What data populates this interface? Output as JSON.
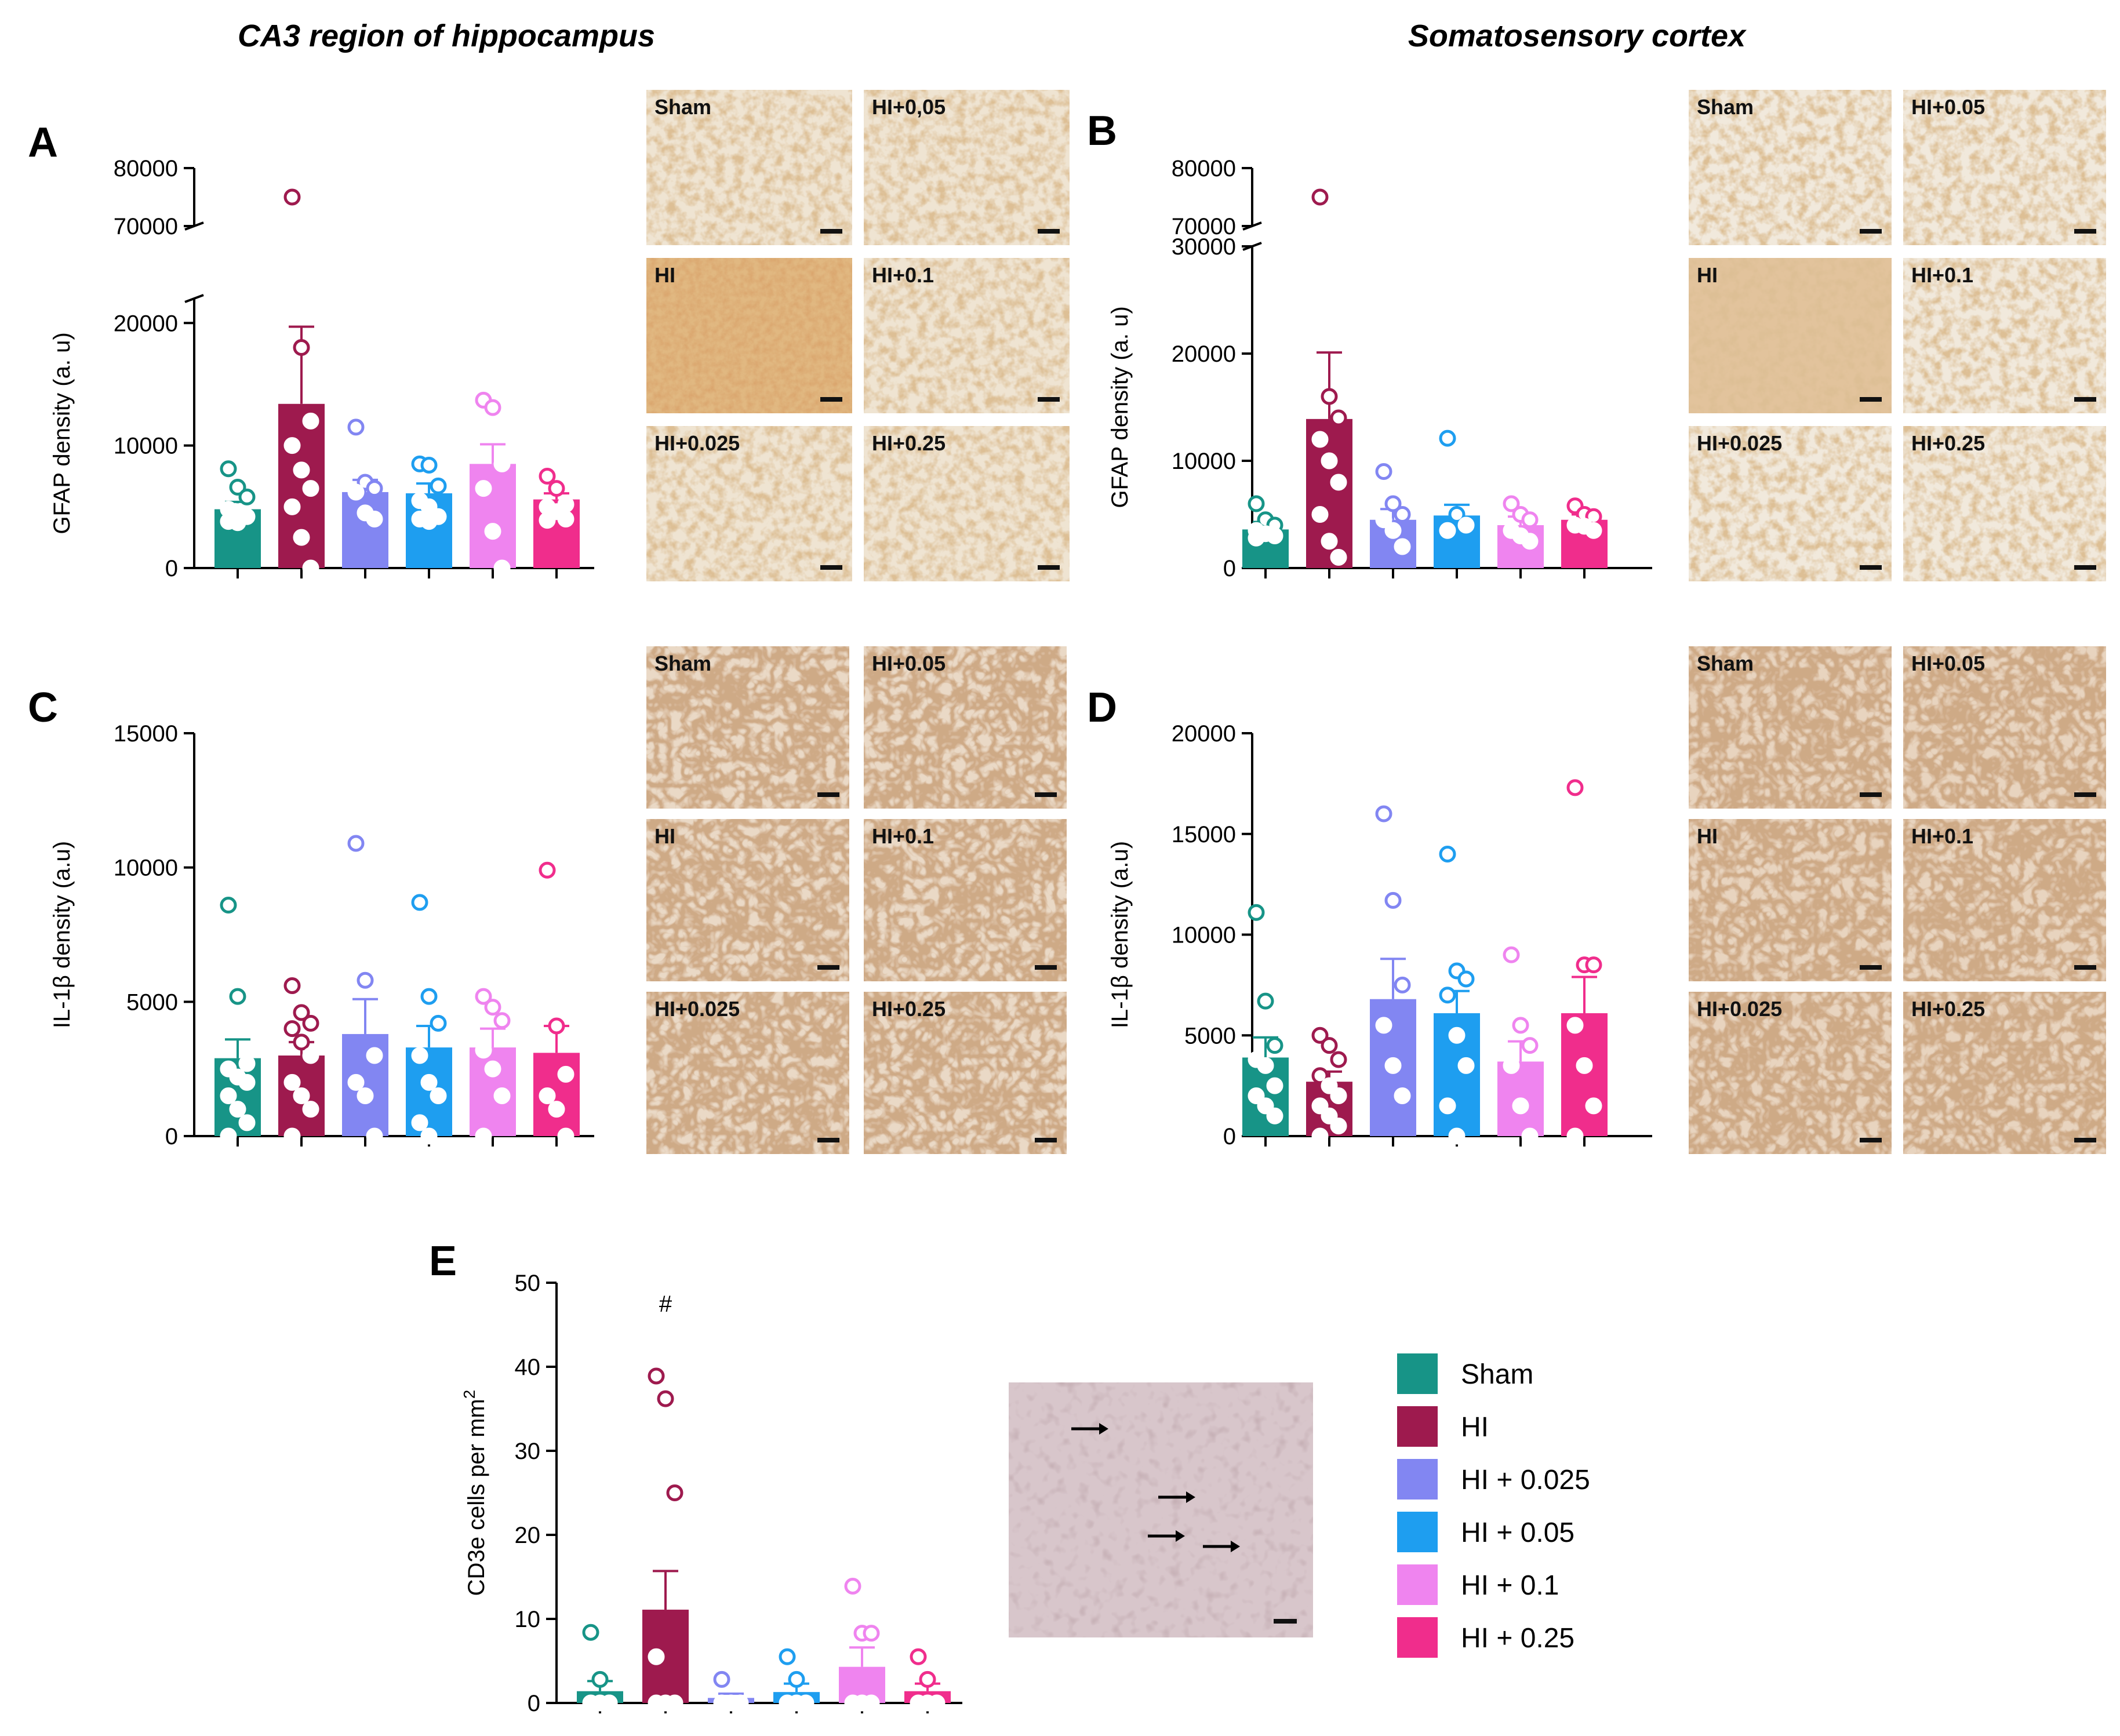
{
  "headers": {
    "left": "CA3 region of hippocampus",
    "right": "Somatosensory cortex"
  },
  "colors": {
    "Sham": "#179487",
    "HI": "#9e1a4e",
    "HI + 0.025": "#8286f2",
    "HI + 0.05": "#1e9ef0",
    "HI + 0.1": "#ef84ef",
    "HI + 0.25": "#f02d8c"
  },
  "legend": {
    "items": [
      "Sham",
      "HI",
      "HI + 0.025",
      "HI + 0.05",
      "HI + 0.1",
      "HI + 0.25"
    ]
  },
  "micrographs": {
    "A": {
      "labels": [
        "Sham",
        "HI+0,05",
        "HI",
        "HI+0.1",
        "HI+0.025",
        "HI+0.25"
      ],
      "stain": "GFAP"
    },
    "B": {
      "labels": [
        "Sham",
        "HI+0.05",
        "HI",
        "HI+0.1",
        "HI+0.025",
        "HI+0.25"
      ],
      "stain": "GFAP"
    },
    "C": {
      "labels": [
        "Sham",
        "HI+0.05",
        "HI",
        "HI+0.1",
        "HI+0.025",
        "HI+0.25"
      ],
      "stain": "IL-1β"
    },
    "D": {
      "labels": [
        "Sham",
        "HI+0.05",
        "HI",
        "HI+0.1",
        "HI+0.025",
        "HI+0.25"
      ],
      "stain": "IL-1β"
    },
    "E": {
      "stain": "CD3e",
      "arrows": 4
    }
  },
  "chart_data": [
    {
      "panel": "A",
      "type": "bar",
      "ylabel": "GFAP density (a. u)",
      "categories": [
        "Sham",
        "HI",
        "HI + 0.025",
        "HI + 0.05",
        "HI + 0.1",
        "HI + 0.25"
      ],
      "axis_break": {
        "lower": [
          0,
          22000
        ],
        "upper": [
          70000,
          80000
        ]
      },
      "yticks_lower": [
        0,
        10000,
        20000
      ],
      "yticks_upper": [
        70000,
        80000
      ],
      "values": [
        4800,
        13400,
        6200,
        6100,
        8500,
        5600
      ],
      "errors": [
        600,
        6300,
        1000,
        800,
        1600,
        500
      ],
      "points": [
        [
          8100,
          6600,
          5800,
          4800,
          4600,
          4200,
          3800,
          3700
        ],
        [
          75000,
          18000,
          12000,
          10000,
          8000,
          6500,
          5000,
          2500,
          0
        ],
        [
          11500,
          7000,
          6500,
          6200,
          4500,
          4000
        ],
        [
          8500,
          8400,
          6700,
          5500,
          5000,
          4200,
          4000,
          3800
        ],
        [
          13700,
          13100,
          8500,
          6500,
          3000,
          0
        ],
        [
          7500,
          6500,
          5200,
          5000,
          4600,
          4000,
          3900
        ]
      ]
    },
    {
      "panel": "B",
      "type": "bar",
      "ylabel": "GFAP density (a. u)",
      "categories": [
        "Sham",
        "HI",
        "HI + 0.025",
        "HI + 0.05",
        "HI + 0.1",
        "HI + 0.25"
      ],
      "axis_break": {
        "lower": [
          0,
          30000
        ],
        "upper": [
          70000,
          80000
        ]
      },
      "yticks_lower": [
        0,
        10000,
        20000,
        30000
      ],
      "yticks_upper": [
        70000,
        80000
      ],
      "values": [
        3600,
        13900,
        4500,
        4900,
        4000,
        4500
      ],
      "errors": [
        700,
        6200,
        1000,
        1000,
        800,
        500
      ],
      "points": [
        [
          6000,
          4500,
          4000,
          3500,
          3200,
          3000,
          2800
        ],
        [
          75000,
          16000,
          14000,
          12000,
          10000,
          8000,
          5000,
          2500,
          1000
        ],
        [
          9000,
          6000,
          5000,
          4500,
          3500,
          2000
        ],
        [
          12100,
          5000,
          4000,
          3500
        ],
        [
          6000,
          5000,
          4500,
          3500,
          3000,
          2500
        ],
        [
          5800,
          5000,
          4800,
          4000,
          3900,
          3500
        ]
      ]
    },
    {
      "panel": "C",
      "type": "bar",
      "ylabel": "IL-1β density (a.u)",
      "categories": [
        "Sham",
        "HI",
        "HI + 0.025",
        "HI + 0.05",
        "HI + 0.1",
        "HI + 0.25"
      ],
      "ylim": [
        0,
        15000
      ],
      "yticks": [
        0,
        5000,
        10000,
        15000
      ],
      "values": [
        2900,
        3000,
        3800,
        3300,
        3300,
        3100
      ],
      "errors": [
        700,
        500,
        1300,
        800,
        700,
        1000
      ],
      "points": [
        [
          8600,
          5200,
          2700,
          2500,
          2200,
          2000,
          1500,
          1000,
          500,
          0
        ],
        [
          5600,
          4600,
          4200,
          4000,
          3500,
          3000,
          2000,
          1500,
          1000,
          0
        ],
        [
          10900,
          5800,
          3000,
          2000,
          1500,
          0
        ],
        [
          8700,
          5200,
          4200,
          3000,
          2000,
          1500,
          500,
          0
        ],
        [
          5200,
          4800,
          4300,
          3200,
          2500,
          1500,
          0
        ],
        [
          9900,
          4100,
          2300,
          1500,
          1000,
          0
        ]
      ]
    },
    {
      "panel": "D",
      "type": "bar",
      "ylabel": "IL-1β density (a.u)",
      "categories": [
        "Sham",
        "HI",
        "HI + 0.025",
        "HI + 0.05",
        "HI + 0.1",
        "HI + 0.25"
      ],
      "ylim": [
        0,
        20000
      ],
      "yticks": [
        0,
        5000,
        10000,
        15000,
        20000
      ],
      "values": [
        3900,
        2700,
        6800,
        6100,
        3700,
        6100
      ],
      "errors": [
        1000,
        500,
        2000,
        1100,
        1000,
        1800
      ],
      "points": [
        [
          11100,
          6700,
          4500,
          3800,
          3500,
          2500,
          2000,
          1500,
          1000
        ],
        [
          5000,
          4500,
          3800,
          3000,
          2500,
          2000,
          1500,
          1000,
          500,
          0
        ],
        [
          16000,
          11700,
          7500,
          5500,
          3500,
          2000
        ],
        [
          14000,
          8200,
          7800,
          7000,
          5000,
          3500,
          1500,
          0
        ],
        [
          9000,
          5500,
          4500,
          3500,
          1500,
          0
        ],
        [
          17300,
          8500,
          8500,
          5500,
          3500,
          1500,
          0
        ]
      ]
    },
    {
      "panel": "E",
      "type": "bar",
      "ylabel": "CD3e cells per mm2",
      "categories": [
        "Sham",
        "HI",
        "HI + 0.025",
        "HI + 0.05",
        "HI + 0.1",
        "HI + 0.25"
      ],
      "ylim": [
        0,
        50
      ],
      "yticks": [
        0,
        10,
        20,
        30,
        40,
        50
      ],
      "values": [
        1.4,
        11.1,
        0.6,
        1.3,
        4.3,
        1.4
      ],
      "errors": [
        1.2,
        4.6,
        0.5,
        1.0,
        2.3,
        0.9
      ],
      "annotation": {
        "text": "#",
        "category": "HI"
      },
      "points": [
        [
          8.4,
          2.8,
          0,
          0,
          0,
          0
        ],
        [
          38.9,
          36.2,
          25.0,
          5.5,
          0,
          0,
          0
        ],
        [
          2.8,
          0,
          0,
          0
        ],
        [
          5.5,
          2.8,
          0,
          0,
          0
        ],
        [
          13.9,
          8.3,
          8.3,
          0,
          0,
          0
        ],
        [
          5.5,
          2.8,
          0,
          0,
          0
        ]
      ]
    }
  ]
}
